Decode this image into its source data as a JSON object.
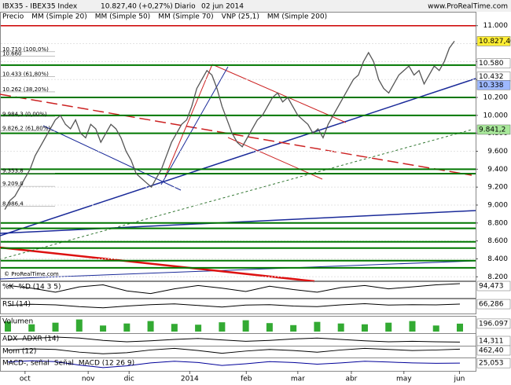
{
  "chart_data": {
    "type": "line",
    "header": {
      "symbol": "IBX35 - IBEX35 Index",
      "quote": "10.827,40 (+0,27%)",
      "period": "Diario",
      "date": "02 jun 2014",
      "source": "www.ProRealTime.com"
    },
    "watermark": "© ProRealTime.com",
    "legend": [
      {
        "name": "Precio",
        "color": "#888888"
      },
      {
        "name": "MM (Simple 20)",
        "color": "#cc0000"
      },
      {
        "name": "MM (Simple 50)",
        "color": "#888888"
      },
      {
        "name": "MM (Simple 70)",
        "color": "#000099"
      },
      {
        "name": "VNP (25,1)",
        "color": "#99bbff"
      },
      {
        "name": "MM (Simple 200)",
        "color": "#006600"
      }
    ],
    "series": [
      {
        "name": "Precio",
        "color": "#555555",
        "values": [
          8950,
          9050,
          9100,
          9200,
          9300,
          9400,
          9550,
          9650,
          9750,
          9850,
          9950,
          10000,
          9900,
          9850,
          9950,
          9800,
          9750,
          9900,
          9850,
          9700,
          9800,
          9900,
          9850,
          9750,
          9600,
          9500,
          9350,
          9300,
          9250,
          9200,
          9300,
          9400,
          9550,
          9700,
          9800,
          9900,
          9950,
          10100,
          10300,
          10400,
          10500,
          10450,
          10300,
          10100,
          9950,
          9800,
          9700,
          9650,
          9750,
          9850,
          9950,
          10000,
          10100,
          10200,
          10250,
          10150,
          10200,
          10100,
          10000,
          9950,
          9900,
          9800,
          9850,
          9750,
          9900,
          10000,
          10100,
          10200,
          10300,
          10400,
          10450,
          10600,
          10700,
          10600,
          10400,
          10300,
          10250,
          10350,
          10450,
          10500,
          10550,
          10450,
          10500,
          10350,
          10450,
          10550,
          10500,
          10600,
          10750,
          10827.4
        ]
      }
    ],
    "xlim": [
      -0.8,
      93.2
    ],
    "xticks": [
      {
        "value": 4,
        "label": "oct"
      },
      {
        "value": 16.5,
        "label": "nov"
      },
      {
        "value": 24.6,
        "label": "dic"
      },
      {
        "value": 36.6,
        "label": "2014"
      },
      {
        "value": 47.8,
        "label": "feb"
      },
      {
        "value": 58,
        "label": "mar"
      },
      {
        "value": 68.6,
        "label": "abr"
      },
      {
        "value": 79,
        "label": "may"
      },
      {
        "value": 90,
        "label": "jun"
      }
    ],
    "ylim": [
      8150,
      11050
    ],
    "yticks": [
      {
        "value": 8200,
        "label": "8.200"
      },
      {
        "value": 8400,
        "label": "8.400"
      },
      {
        "value": 8600,
        "label": "8.600"
      },
      {
        "value": 8800,
        "label": "8.800"
      },
      {
        "value": 9000,
        "label": "9.000"
      },
      {
        "value": 9200,
        "label": "9.200"
      },
      {
        "value": 9400,
        "label": "9.400"
      },
      {
        "value": 9600,
        "label": "9.600"
      },
      {
        "value": 9800,
        "label": "9.800"
      },
      {
        "value": 10000,
        "label": "10.000"
      },
      {
        "value": 10200,
        "label": "10.200"
      },
      {
        "value": 10400,
        "label": "10.400"
      },
      {
        "value": 10600,
        "label": "10.600"
      },
      {
        "value": 10800,
        "label": "10.800"
      },
      {
        "value": 11000,
        "label": "11.000"
      }
    ],
    "levels": [
      10560,
      10200,
      10000,
      9800,
      9400,
      9350,
      8800,
      8740,
      8590,
      8520,
      8380,
      8300
    ],
    "level_color": "#007700",
    "resistance": 11000,
    "resistance_color": "#cc0000",
    "price_labels": [
      {
        "value": 10827.4,
        "label": "10.827,40",
        "color": "#ffee33"
      },
      {
        "value": 10580,
        "label": "10.580",
        "color": "#ffffff"
      },
      {
        "value": 10432,
        "label": "10.432",
        "color": "#ffffff"
      },
      {
        "value": 10338,
        "label": "10.338",
        "color": "#9db8ff"
      },
      {
        "value": 9841.2,
        "label": "9.841,2",
        "color": "#a8e89a"
      }
    ],
    "fib_labels": [
      {
        "value": 10710,
        "label": "10.710 (100,0%)"
      },
      {
        "value": 10660,
        "label": "10.660"
      },
      {
        "value": 10433,
        "label": "10.433 (61,80%)"
      },
      {
        "value": 10262,
        "label": "10.262 (38,20%)"
      },
      {
        "value": 9984.3,
        "label": "9.984,3 (0,00%)"
      },
      {
        "value": 9826.2,
        "label": "9.826,2 (61,80%)"
      },
      {
        "value": 9353.8,
        "label": "9.353,8"
      },
      {
        "value": 9209,
        "label": "9.209,0"
      },
      {
        "value": 8986.4,
        "label": "8.986,4"
      }
    ],
    "panels": [
      {
        "labels": [
          "%K",
          "%D (14 3 5)"
        ],
        "style": "line",
        "color": "#000000",
        "ylim": [
          0,
          100
        ],
        "values": [
          80,
          60,
          30,
          70,
          85,
          40,
          20,
          55,
          80,
          60,
          35,
          75,
          50,
          30,
          65,
          80,
          55,
          70,
          85,
          94.473
        ],
        "value_labels": [
          null,
          null,
          null,
          null,
          null,
          null,
          null,
          null,
          null,
          null,
          null,
          null,
          null,
          null,
          null,
          null,
          null,
          null,
          null,
          "94,473"
        ]
      },
      {
        "labels": [
          "RSI (14)"
        ],
        "style": "line",
        "color": "#000000",
        "ylim": [
          0,
          100
        ],
        "values": [
          55,
          65,
          60,
          45,
          35,
          50,
          62,
          68,
          55,
          42,
          58,
          62,
          50,
          45,
          60,
          70,
          58,
          62,
          60,
          66.286
        ],
        "value_labels": [
          null,
          null,
          null,
          null,
          null,
          null,
          null,
          null,
          null,
          null,
          null,
          null,
          null,
          null,
          null,
          null,
          null,
          null,
          null,
          "66,286"
        ]
      },
      {
        "labels": [
          "Volumen"
        ],
        "style": "bar",
        "color": "#33aa33",
        "ylim": [
          0,
          350000
        ],
        "values": [
          250000,
          180000,
          220000,
          300000,
          150000,
          200000,
          260000,
          190000,
          170000,
          230000,
          280000,
          210000,
          160000,
          240000,
          200000,
          180000,
          220000,
          260000,
          150000,
          196097
        ],
        "value_labels": [
          null,
          null,
          null,
          null,
          null,
          null,
          null,
          null,
          null,
          null,
          null,
          null,
          null,
          null,
          null,
          null,
          null,
          null,
          null,
          "196.097"
        ]
      },
      {
        "labels": [
          "ADX",
          "ADXR (14)"
        ],
        "style": "line",
        "color": "#000000",
        "ylim": [
          10,
          30
        ],
        "values": [
          20,
          22,
          25,
          23,
          18,
          15,
          17,
          20,
          22,
          19,
          16,
          18,
          21,
          23,
          20,
          17,
          15,
          16,
          15,
          14.311
        ],
        "value_labels": [
          null,
          null,
          null,
          null,
          null,
          null,
          null,
          null,
          null,
          null,
          null,
          null,
          null,
          null,
          null,
          null,
          null,
          null,
          null,
          "14,311"
        ]
      },
      {
        "labels": [
          "Mom (12)"
        ],
        "style": "line",
        "color": "#000000",
        "ylim": [
          -800,
          800
        ],
        "values": [
          300,
          500,
          400,
          -100,
          -400,
          -200,
          300,
          600,
          200,
          -300,
          100,
          400,
          200,
          -100,
          300,
          600,
          400,
          200,
          300,
          462.4
        ],
        "value_labels": [
          null,
          null,
          null,
          null,
          null,
          null,
          null,
          null,
          null,
          null,
          null,
          null,
          null,
          null,
          null,
          null,
          null,
          null,
          null,
          "462,40"
        ]
      },
      {
        "labels": [
          "MACD-, señal",
          "Señal",
          "MACD (12 26 9)"
        ],
        "style": "line",
        "color": "#000099",
        "ylim": [
          -120,
          120
        ],
        "values": [
          50,
          80,
          60,
          -20,
          -80,
          -40,
          30,
          70,
          40,
          -30,
          10,
          60,
          40,
          0,
          30,
          70,
          50,
          30,
          20,
          25.053
        ],
        "value_labels": [
          null,
          null,
          null,
          null,
          null,
          null,
          null,
          null,
          null,
          null,
          null,
          null,
          null,
          null,
          null,
          null,
          null,
          null,
          null,
          "25,053"
        ]
      }
    ]
  }
}
